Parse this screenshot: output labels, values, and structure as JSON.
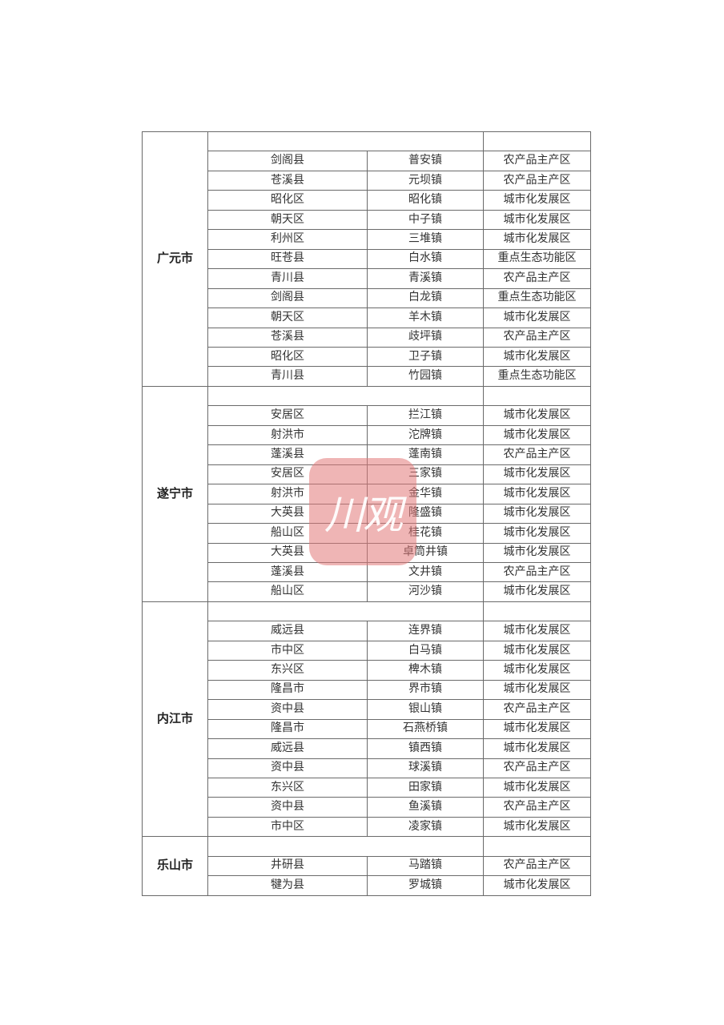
{
  "watermark": {
    "text": "川观",
    "color": "#e27878"
  },
  "groups": [
    {
      "city": "广元市",
      "rows": [
        [
          "剑阁县",
          "普安镇",
          "农产品主产区"
        ],
        [
          "苍溪县",
          "元坝镇",
          "农产品主产区"
        ],
        [
          "昭化区",
          "昭化镇",
          "城市化发展区"
        ],
        [
          "朝天区",
          "中子镇",
          "城市化发展区"
        ],
        [
          "利州区",
          "三堆镇",
          "城市化发展区"
        ],
        [
          "旺苍县",
          "白水镇",
          "重点生态功能区"
        ],
        [
          "青川县",
          "青溪镇",
          "农产品主产区"
        ],
        [
          "剑阁县",
          "白龙镇",
          "重点生态功能区"
        ],
        [
          "朝天区",
          "羊木镇",
          "城市化发展区"
        ],
        [
          "苍溪县",
          "歧坪镇",
          "农产品主产区"
        ],
        [
          "昭化区",
          "卫子镇",
          "城市化发展区"
        ],
        [
          "青川县",
          "竹园镇",
          "重点生态功能区"
        ]
      ]
    },
    {
      "city": "遂宁市",
      "rows": [
        [
          "安居区",
          "拦江镇",
          "城市化发展区"
        ],
        [
          "射洪市",
          "沱牌镇",
          "城市化发展区"
        ],
        [
          "蓬溪县",
          "蓬南镇",
          "农产品主产区"
        ],
        [
          "安居区",
          "三家镇",
          "城市化发展区"
        ],
        [
          "射洪市",
          "金华镇",
          "城市化发展区"
        ],
        [
          "大英县",
          "隆盛镇",
          "城市化发展区"
        ],
        [
          "船山区",
          "桂花镇",
          "城市化发展区"
        ],
        [
          "大英县",
          "卓筒井镇",
          "城市化发展区"
        ],
        [
          "蓬溪县",
          "文井镇",
          "农产品主产区"
        ],
        [
          "船山区",
          "河沙镇",
          "城市化发展区"
        ]
      ]
    },
    {
      "city": "内江市",
      "rows": [
        [
          "威远县",
          "连界镇",
          "城市化发展区"
        ],
        [
          "市中区",
          "白马镇",
          "城市化发展区"
        ],
        [
          "东兴区",
          "椑木镇",
          "城市化发展区"
        ],
        [
          "隆昌市",
          "界市镇",
          "城市化发展区"
        ],
        [
          "资中县",
          "银山镇",
          "农产品主产区"
        ],
        [
          "隆昌市",
          "石燕桥镇",
          "城市化发展区"
        ],
        [
          "威远县",
          "镇西镇",
          "城市化发展区"
        ],
        [
          "资中县",
          "球溪镇",
          "农产品主产区"
        ],
        [
          "东兴区",
          "田家镇",
          "城市化发展区"
        ],
        [
          "资中县",
          "鱼溪镇",
          "农产品主产区"
        ],
        [
          "市中区",
          "凌家镇",
          "城市化发展区"
        ]
      ]
    },
    {
      "city": "乐山市",
      "rows": [
        [
          "井研县",
          "马踏镇",
          "农产品主产区"
        ],
        [
          "犍为县",
          "罗城镇",
          "城市化发展区"
        ]
      ]
    }
  ]
}
